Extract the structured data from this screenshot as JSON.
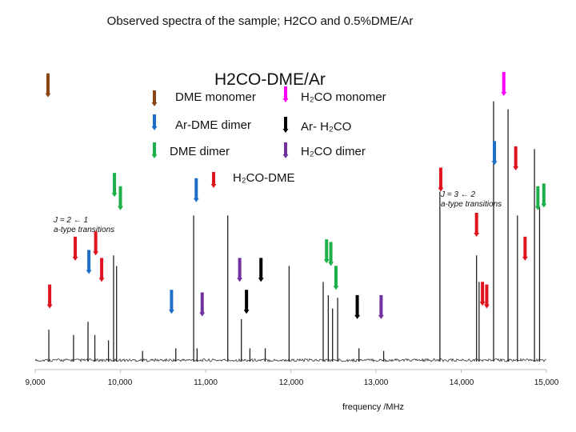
{
  "page_title": "Observed spectra of the sample; H2CO and 0.5%DME/Ar",
  "chart_data": {
    "type": "line",
    "title": "H2CO-DME/Ar",
    "xlabel": "frequency /MHz",
    "ylabel": "",
    "xlim": [
      9000,
      15000
    ],
    "ylim": [
      0,
      1
    ],
    "x_ticks": [
      "9,000",
      "10,000",
      "11,000",
      "12,000",
      "13,000",
      "14,000",
      "15,000"
    ],
    "x_tick_values": [
      9000,
      10000,
      11000,
      12000,
      13000,
      14000,
      15000
    ],
    "legend": [
      {
        "label": "DME  monomer",
        "color": "#8B4513"
      },
      {
        "label": "H₂CO monomer",
        "color": "#FF00FF"
      },
      {
        "label": "Ar-DME dimer",
        "color": "#1E6FC8"
      },
      {
        "label": "Ar- H₂CO",
        "color": "#000000"
      },
      {
        "label": "DME dimer",
        "color": "#1DB04A"
      },
      {
        "label": "H₂CO dimer",
        "color": "#7030A0"
      },
      {
        "label": "H₂CO-DME",
        "color": "#E0141E"
      }
    ],
    "peaks": [
      {
        "x": 9160,
        "y": 0.12
      },
      {
        "x": 9450,
        "y": 0.1
      },
      {
        "x": 9620,
        "y": 0.15
      },
      {
        "x": 9700,
        "y": 0.1
      },
      {
        "x": 9860,
        "y": 0.08
      },
      {
        "x": 9920,
        "y": 0.4
      },
      {
        "x": 9955,
        "y": 0.36
      },
      {
        "x": 10260,
        "y": 0.04
      },
      {
        "x": 10650,
        "y": 0.05
      },
      {
        "x": 10860,
        "y": 0.55
      },
      {
        "x": 10900,
        "y": 0.05
      },
      {
        "x": 11260,
        "y": 0.55
      },
      {
        "x": 11420,
        "y": 0.16
      },
      {
        "x": 11520,
        "y": 0.05
      },
      {
        "x": 11700,
        "y": 0.05
      },
      {
        "x": 11980,
        "y": 0.36
      },
      {
        "x": 12380,
        "y": 0.3
      },
      {
        "x": 12440,
        "y": 0.25
      },
      {
        "x": 12490,
        "y": 0.2
      },
      {
        "x": 12550,
        "y": 0.24
      },
      {
        "x": 12800,
        "y": 0.05
      },
      {
        "x": 13090,
        "y": 0.04
      },
      {
        "x": 13750,
        "y": 0.64
      },
      {
        "x": 14180,
        "y": 0.4
      },
      {
        "x": 14210,
        "y": 0.3
      },
      {
        "x": 14380,
        "y": 0.98
      },
      {
        "x": 14550,
        "y": 0.95
      },
      {
        "x": 14660,
        "y": 0.55
      },
      {
        "x": 14860,
        "y": 0.8
      },
      {
        "x": 14920,
        "y": 0.58
      }
    ],
    "markers": [
      {
        "x": 9150,
        "species": "DME monomer",
        "color": "#8B4513",
        "tip": 0.995
      },
      {
        "x": 9170,
        "species": "H2CO-DME",
        "color": "#E0141E",
        "tip": 0.2
      },
      {
        "x": 9470,
        "species": "H2CO-DME",
        "color": "#E0141E",
        "tip": 0.38
      },
      {
        "x": 9630,
        "species": "Ar-DME dimer",
        "color": "#1E6FC8",
        "tip": 0.33
      },
      {
        "x": 9710,
        "species": "H2CO-DME",
        "color": "#E0141E",
        "tip": 0.4
      },
      {
        "x": 9780,
        "species": "H2CO-DME",
        "color": "#E0141E",
        "tip": 0.3
      },
      {
        "x": 9930,
        "species": "DME dimer",
        "color": "#1DB04A",
        "tip": 0.62
      },
      {
        "x": 10000,
        "species": "DME dimer",
        "color": "#1DB04A",
        "tip": 0.57
      },
      {
        "x": 10600,
        "species": "Ar-DME dimer",
        "color": "#1E6FC8",
        "tip": 0.18
      },
      {
        "x": 10890,
        "species": "Ar-DME dimer",
        "color": "#1E6FC8",
        "tip": 0.6
      },
      {
        "x": 10960,
        "species": "H2CO dimer",
        "color": "#7030A0",
        "tip": 0.17
      },
      {
        "x": 11400,
        "species": "H2CO dimer",
        "color": "#7030A0",
        "tip": 0.3
      },
      {
        "x": 11480,
        "species": "Ar-H2CO",
        "color": "#000000",
        "tip": 0.18
      },
      {
        "x": 11650,
        "species": "Ar-H2CO",
        "color": "#000000",
        "tip": 0.3
      },
      {
        "x": 12420,
        "species": "DME dimer",
        "color": "#1DB04A",
        "tip": 0.37
      },
      {
        "x": 12470,
        "species": "DME dimer",
        "color": "#1DB04A",
        "tip": 0.36
      },
      {
        "x": 12530,
        "species": "DME dimer",
        "color": "#1DB04A",
        "tip": 0.27
      },
      {
        "x": 12780,
        "species": "Ar-H2CO",
        "color": "#000000",
        "tip": 0.16
      },
      {
        "x": 13060,
        "species": "H2CO dimer",
        "color": "#7030A0",
        "tip": 0.16
      },
      {
        "x": 13760,
        "species": "H2CO-DME",
        "color": "#E0141E",
        "tip": 0.64
      },
      {
        "x": 14180,
        "species": "H2CO-DME",
        "color": "#E0141E",
        "tip": 0.47
      },
      {
        "x": 14250,
        "species": "H2CO-DME",
        "color": "#E0141E",
        "tip": 0.21
      },
      {
        "x": 14300,
        "species": "H2CO-DME",
        "color": "#E0141E",
        "tip": 0.2
      },
      {
        "x": 14500,
        "species": "H2CO monomer",
        "color": "#FF00FF",
        "tip": 1.0
      },
      {
        "x": 14390,
        "species": "Ar-DME dimer",
        "color": "#1E6FC8",
        "tip": 0.74
      },
      {
        "x": 14640,
        "species": "H2CO-DME",
        "color": "#E0141E",
        "tip": 0.72
      },
      {
        "x": 14750,
        "species": "H2CO-DME",
        "color": "#E0141E",
        "tip": 0.38
      },
      {
        "x": 14900,
        "species": "DME dimer",
        "color": "#1DB04A",
        "tip": 0.57
      },
      {
        "x": 14970,
        "species": "DME dimer",
        "color": "#1DB04A",
        "tip": 0.58
      }
    ],
    "annotations": [
      {
        "line1": "J = 2 ← 1",
        "line2": "a-type transitions",
        "side": "left"
      },
      {
        "line1": "J = 3 ← 2",
        "line2": "a-type transitions",
        "side": "right"
      }
    ]
  }
}
